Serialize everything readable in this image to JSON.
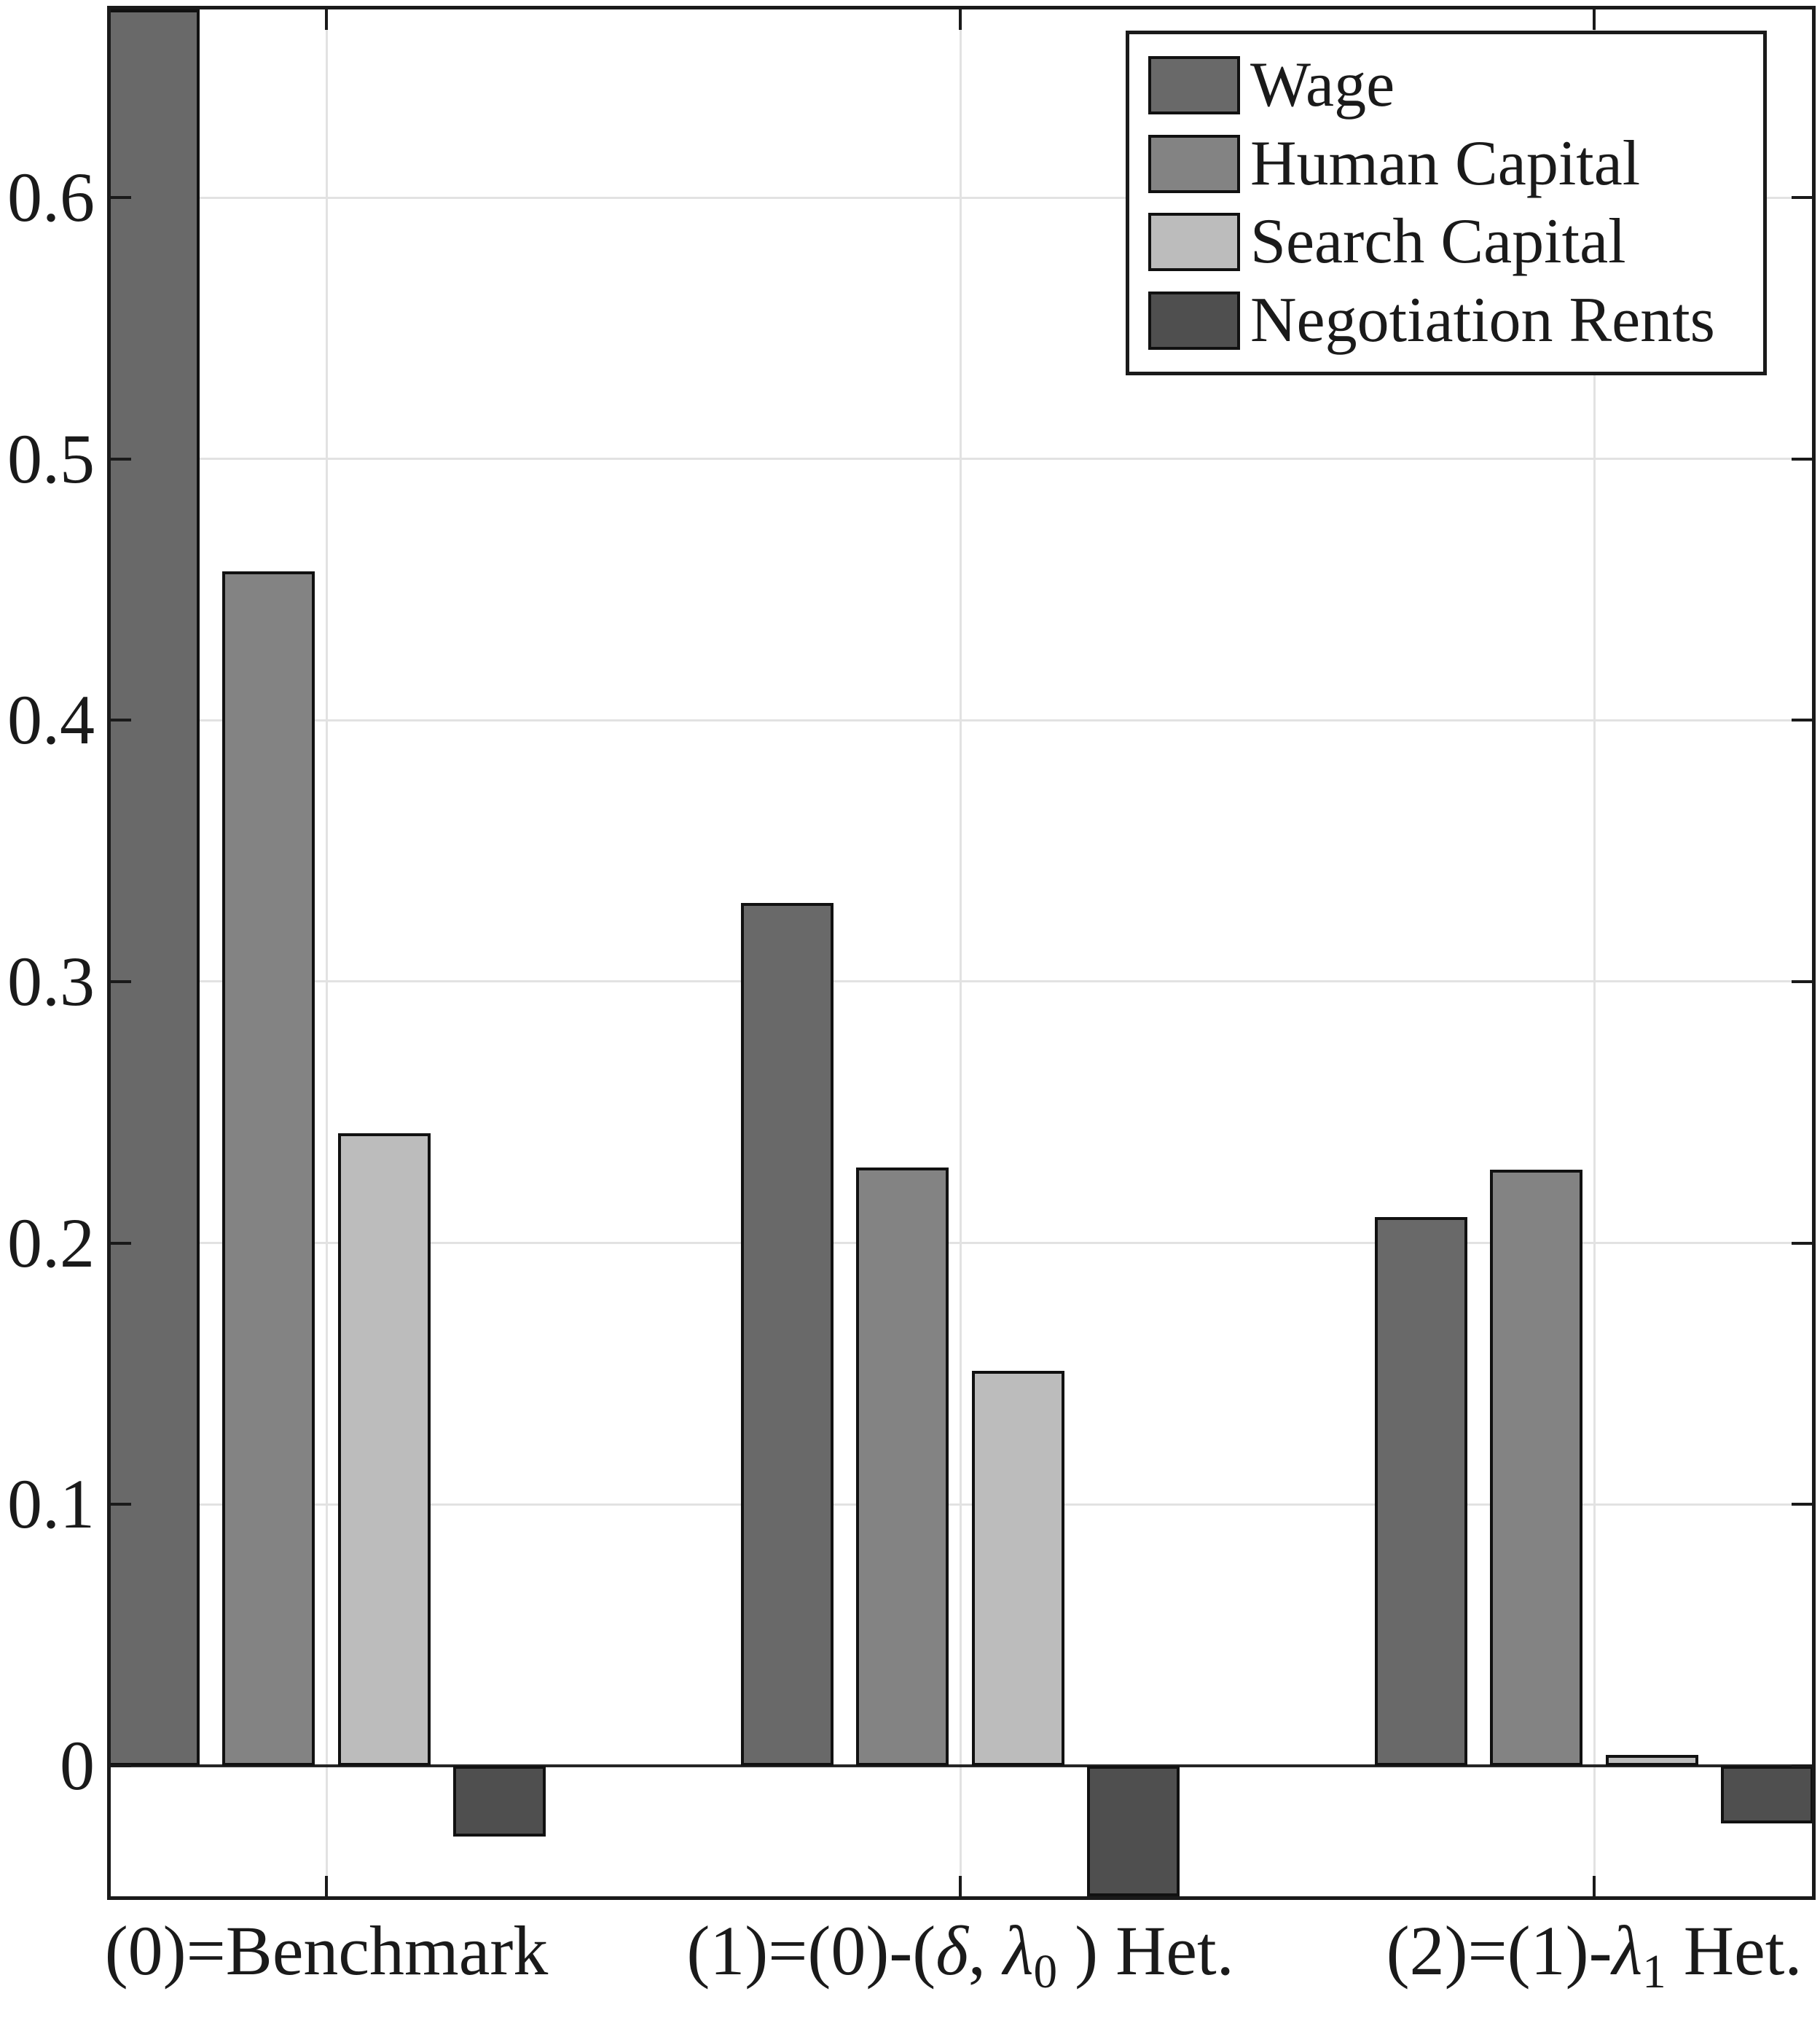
{
  "chart_data": {
    "type": "bar",
    "title": "",
    "xlabel": "",
    "ylabel": "",
    "categories": [
      "(0)=Benchmark",
      "(1)=(0)-(δ, λ0 ) Het.",
      "(2)=(1)-λ1 Het."
    ],
    "category_parts": [
      [
        {
          "t": "(0)=Benchmark"
        }
      ],
      [
        {
          "t": "(1)=(0)-("
        },
        {
          "t": "δ",
          "i": 1
        },
        {
          "t": ", "
        },
        {
          "t": "λ",
          "i": 1
        },
        {
          "t": "0",
          "s": 1
        },
        {
          "t": " ) Het."
        }
      ],
      [
        {
          "t": "(2)=(1)-"
        },
        {
          "t": "λ",
          "i": 1
        },
        {
          "t": "1",
          "s": 1
        },
        {
          "t": " Het."
        }
      ]
    ],
    "series": [
      {
        "name": "Wage",
        "color": "#696969",
        "values": [
          0.672,
          0.33,
          0.21
        ]
      },
      {
        "name": "Human Capital",
        "color": "#838383",
        "values": [
          0.457,
          0.229,
          0.228
        ]
      },
      {
        "name": "Search Capital",
        "color": "#bcbcbc",
        "values": [
          0.242,
          0.151,
          0.004
        ]
      },
      {
        "name": "Negotiation Rents",
        "color": "#4f4f4f",
        "values": [
          -0.027,
          -0.05,
          -0.022
        ]
      }
    ],
    "ylim": [
      -0.05,
      0.672
    ],
    "yticks": [
      0,
      0.1,
      0.2,
      0.3,
      0.4,
      0.5,
      0.6
    ],
    "ytick_labels": [
      "0",
      "0.1",
      "0.2",
      "0.3",
      "0.4",
      "0.5",
      "0.6"
    ],
    "grid": true,
    "legend_position": "top-right",
    "colors": {
      "bar_edge": "#111111",
      "gridline": "#e2e2e2",
      "axis": "#1a1a1a",
      "zero_line": "#262626",
      "background": "#ffffff",
      "text": "#1a1a1a"
    }
  }
}
